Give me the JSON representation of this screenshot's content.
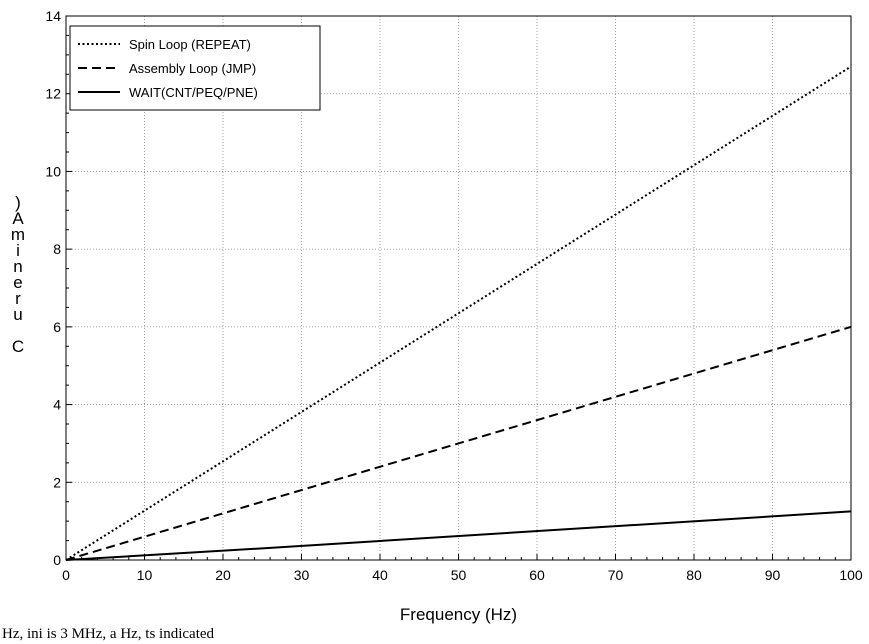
{
  "chart_data": {
    "type": "line",
    "xlabel": "Frequency (Hz)",
    "ylabel": ")Amineru C",
    "xlim": [
      0,
      100
    ],
    "ylim": [
      0,
      14
    ],
    "xticks": [
      0,
      10,
      20,
      30,
      40,
      50,
      60,
      70,
      80,
      90,
      100
    ],
    "yticks": [
      0,
      2,
      4,
      6,
      8,
      10,
      12,
      14
    ],
    "grid": true,
    "legend_position": "top-left",
    "series": [
      {
        "name": "Spin Loop (REPEAT)",
        "style": "dotted",
        "color": "#000000",
        "x": [
          0,
          100
        ],
        "y": [
          0,
          12.7
        ]
      },
      {
        "name": "Assembly Loop (JMP)",
        "style": "dashed",
        "color": "#000000",
        "x": [
          0,
          100
        ],
        "y": [
          0,
          6.0
        ]
      },
      {
        "name": "WAIT(CNT/PEQ/PNE)",
        "style": "solid",
        "color": "#000000",
        "x": [
          0,
          25,
          100
        ],
        "y": [
          0,
          0.3,
          1.25
        ]
      }
    ]
  },
  "caption": "Hz, ini  is  3 MHz,  a  Hz, ts  indicated"
}
